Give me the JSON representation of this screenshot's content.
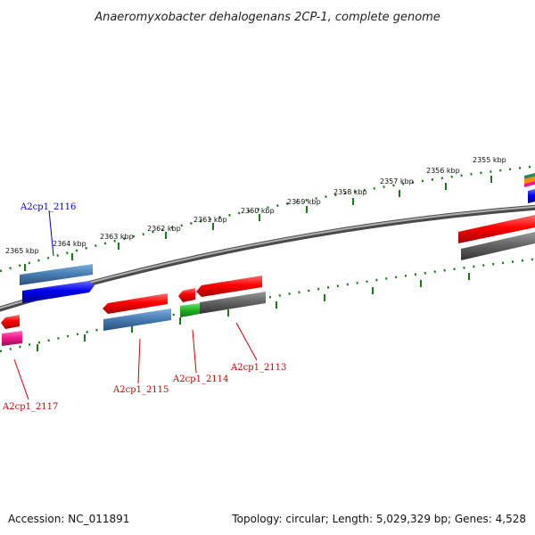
{
  "title": "Anaeromyxobacter dehalogenans 2CP-1, complete genome",
  "footer": {
    "accession": "Accession: NC_011891",
    "topology": "Topology: circular; Length: 5,029,329 bp; Genes: 4,528"
  },
  "ticks": [
    "2365 kbp",
    "2364 kbp",
    "2363 kbp",
    "2362 kbp",
    "2361 kbp",
    "2360 kbp",
    "2359 kbp",
    "2358 kbp",
    "2357 kbp",
    "2356 kbp",
    "2355 kbp"
  ],
  "genes": [
    {
      "label": "A2cp1_2116",
      "strand": "forward",
      "color": "#0000cc"
    },
    {
      "label": "A2cp1_2115",
      "strand": "reverse",
      "color": "#cc0000"
    },
    {
      "label": "A2cp1_2114",
      "strand": "reverse",
      "color": "#cc0000"
    },
    {
      "label": "A2cp1_2113",
      "strand": "reverse",
      "color": "#cc0000"
    },
    {
      "label": "A2cp1_2117",
      "strand": "reverse",
      "color": "#cc0000"
    }
  ],
  "colors": {
    "backbone": "#808080",
    "tick_track": "#1a7a1a",
    "cds_forward": "#0000ee",
    "cds_reverse": "#ee0000",
    "gene_blue": "#4a7fb5",
    "gray": "#666666",
    "green": "#22b822",
    "magenta": "#ee1b8c"
  }
}
